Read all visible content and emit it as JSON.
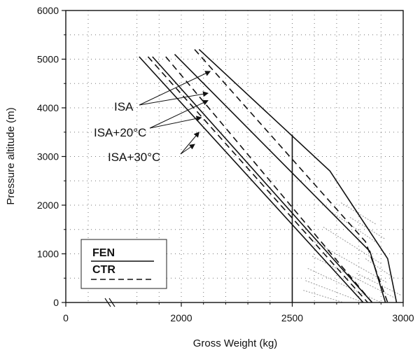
{
  "chart_data": {
    "type": "line",
    "xlabel": "Gross Weight (kg)",
    "ylabel": "Pressure altitude (m)",
    "xlim": [
      0,
      3000
    ],
    "ylim": [
      0,
      6000
    ],
    "x_axis_break": true,
    "xticks": [
      {
        "value": 0,
        "label": "0"
      },
      {
        "value": 2000,
        "label": "2000"
      },
      {
        "value": 2500,
        "label": "2500"
      },
      {
        "value": 3000,
        "label": "3000"
      }
    ],
    "yticks": [
      {
        "value": 0,
        "label": "0"
      },
      {
        "value": 1000,
        "label": "1000"
      },
      {
        "value": 2000,
        "label": "2000"
      },
      {
        "value": 3000,
        "label": "3000"
      },
      {
        "value": 4000,
        "label": "4000"
      },
      {
        "value": 5000,
        "label": "5000"
      },
      {
        "value": 6000,
        "label": "6000"
      }
    ],
    "grid": true,
    "reference_line_x": 2500,
    "series": [
      {
        "group": "FEN",
        "style": "solid",
        "x": [
          2080,
          2670,
          2930,
          2970
        ],
        "y": [
          5200,
          2700,
          900,
          0
        ]
      },
      {
        "group": "CTR",
        "style": "dashed",
        "x": [
          2060,
          2830,
          2930
        ],
        "y": [
          5200,
          1250,
          0
        ]
      },
      {
        "group": "FEN",
        "style": "solid",
        "x": [
          1970,
          2850,
          2920
        ],
        "y": [
          5100,
          1050,
          0
        ]
      },
      {
        "group": "CTR",
        "style": "dashed",
        "x": [
          1930,
          2860
        ],
        "y": [
          5050,
          0
        ]
      },
      {
        "group": "FEN",
        "style": "solid",
        "x": [
          1870,
          2860
        ],
        "y": [
          5050,
          0
        ]
      },
      {
        "group": "CTR",
        "style": "dashed",
        "x": [
          1850,
          2840
        ],
        "y": [
          5050,
          0
        ]
      },
      {
        "group": "FEN",
        "style": "solid",
        "x": [
          1810,
          2820
        ],
        "y": [
          5050,
          0
        ]
      }
    ],
    "annotations": [
      {
        "text": "ISA",
        "targets": [
          [
            2130,
            4750
          ],
          [
            2120,
            4300
          ]
        ]
      },
      {
        "text": "ISA+20°C",
        "targets": [
          [
            2120,
            4150
          ],
          [
            2090,
            3800
          ]
        ]
      },
      {
        "text": "ISA+30°C",
        "targets": [
          [
            2080,
            3500
          ],
          [
            2060,
            3250
          ]
        ]
      }
    ],
    "legend": {
      "position": "bottom-left",
      "entries": [
        {
          "label": "FEN",
          "style": "solid"
        },
        {
          "label": "CTR",
          "style": "dashed"
        }
      ]
    },
    "colors": {
      "line": "#111111",
      "grid": "#777777",
      "hatch": "#9a9a9a"
    }
  }
}
